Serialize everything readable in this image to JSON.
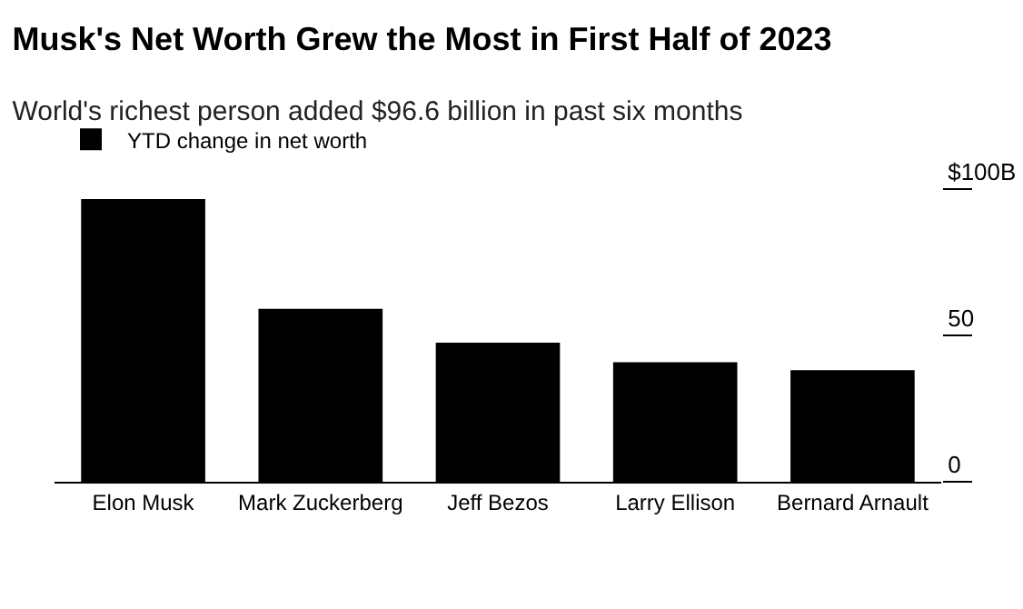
{
  "chart_data": {
    "type": "bar",
    "title": "Musk's Net Worth Grew the Most in First Half of 2023",
    "subtitle": "World's richest person added $96.6 billion in past six months",
    "categories": [
      "Elon Musk",
      "Mark Zuckerberg",
      "Jeff Bezos",
      "Larry Ellison",
      "Bernard Arnault"
    ],
    "series": [
      {
        "name": "YTD change in net worth",
        "color": "#000000",
        "values": [
          96.6,
          59.1,
          47.5,
          40.8,
          38.1
        ]
      }
    ],
    "ylim": [
      0,
      100
    ],
    "yticks": [
      0,
      50,
      {
        "value": 100,
        "label": "$100B"
      }
    ],
    "grid": false,
    "legend": "top left"
  }
}
